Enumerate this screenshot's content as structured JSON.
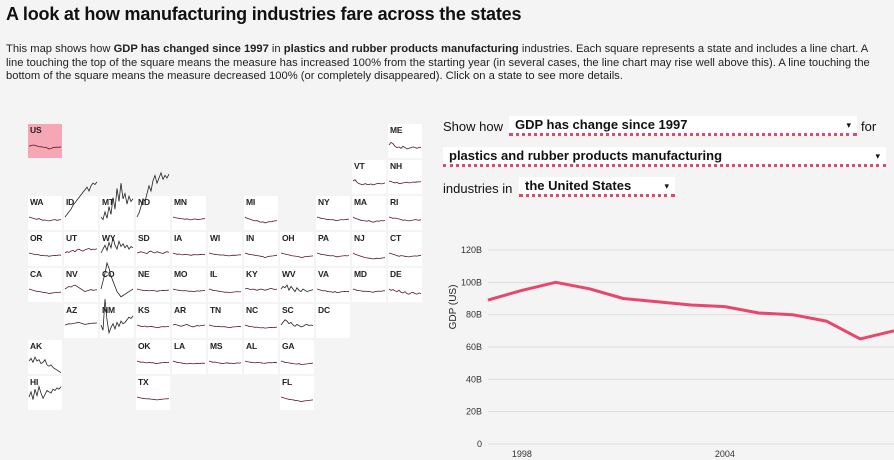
{
  "header": {
    "title": "A look at how manufacturing industries fare across the states",
    "desc_p1": "This map shows how ",
    "desc_b1": "GDP has changed since 1997",
    "desc_p2": " in ",
    "desc_b2": "plastics and rubber products manufacturing",
    "desc_p3": " industries. Each square represents a state and includes a line chart. A line touching the top of the square means the measure has increased 100% from the starting year (in several cases, the line chart may rise well above this). A line touching the bottom of the square means the measure decreased 100% (or completely disappeared). Click on a state to see more details."
  },
  "controls": {
    "show_how": "Show how",
    "measure": "GDP has change since 1997",
    "for_label": "for",
    "industry": "plastics and rubber products manufacturing",
    "industries_in": "industries in",
    "region": "the United States",
    "caret": "▾"
  },
  "colors": {
    "accent": "#e04a6a",
    "line": "#e8476b",
    "tile_active": "#f6a7b5",
    "spark": "#5a1722"
  },
  "states": [
    {
      "abbr": "US",
      "col": 0,
      "row": 0,
      "active": true,
      "values": [
        -10,
        -5,
        0,
        -3,
        -8,
        -12,
        -14,
        -16,
        -18,
        -22,
        -30,
        -28,
        -20,
        -18,
        -16,
        -18,
        -14
      ]
    },
    {
      "abbr": "ME",
      "col": 10,
      "row": 0,
      "values": [
        0,
        20,
        10,
        -10,
        -20,
        -15,
        -25,
        -10,
        -20,
        -30,
        -25,
        -20,
        -15,
        -20,
        -25,
        -18,
        -20
      ]
    },
    {
      "abbr": "VT",
      "col": 9,
      "row": 1,
      "values": [
        0,
        10,
        -10,
        -20,
        -25,
        -30,
        -20,
        -25,
        -28,
        -22,
        -30,
        -25,
        -20,
        -18,
        -22,
        -20,
        -15
      ]
    },
    {
      "abbr": "NH",
      "col": 10,
      "row": 1,
      "values": [
        0,
        -5,
        -10,
        -15,
        -10,
        -20,
        -18,
        -15,
        -12,
        -10,
        -15,
        -12,
        -8,
        -10,
        -6,
        -8,
        -5
      ]
    },
    {
      "abbr": "WA",
      "col": 0,
      "row": 2,
      "values": [
        0,
        -5,
        -10,
        -15,
        -18,
        -12,
        -20,
        -25,
        -22,
        -28,
        -30,
        -26,
        -22,
        -20,
        -25,
        -22,
        -20
      ]
    },
    {
      "abbr": "ID",
      "col": 1,
      "row": 2,
      "wild": true,
      "values": [
        0,
        20,
        40,
        60,
        90,
        110,
        130,
        150,
        170,
        190,
        210,
        230,
        200,
        240,
        260,
        250,
        270
      ]
    },
    {
      "abbr": "MT",
      "col": 2,
      "row": 2,
      "wild": true,
      "values": [
        0,
        -20,
        40,
        -10,
        80,
        20,
        150,
        60,
        220,
        120,
        260,
        140,
        180,
        100,
        160,
        120,
        140
      ]
    },
    {
      "abbr": "ND",
      "col": 3,
      "row": 2,
      "wild": true,
      "values": [
        0,
        30,
        80,
        140,
        120,
        180,
        240,
        200,
        280,
        320,
        260,
        300,
        340,
        290,
        320,
        300,
        330
      ]
    },
    {
      "abbr": "MN",
      "col": 4,
      "row": 2,
      "values": [
        0,
        -5,
        -8,
        -10,
        -12,
        -15,
        -18,
        -14,
        -20,
        -22,
        -18,
        -15,
        -20,
        -18,
        -16,
        -14,
        -12
      ]
    },
    {
      "abbr": "MI",
      "col": 6,
      "row": 2,
      "values": [
        0,
        -10,
        -15,
        -20,
        -25,
        -30,
        -28,
        -35,
        -40,
        -38,
        -45,
        -40,
        -35,
        -38,
        -32,
        -30,
        -28
      ]
    },
    {
      "abbr": "NY",
      "col": 8,
      "row": 2,
      "values": [
        0,
        -5,
        -10,
        -12,
        -15,
        -20,
        -18,
        -22,
        -20,
        -25,
        -28,
        -24,
        -20,
        -22,
        -20,
        -18,
        -16
      ]
    },
    {
      "abbr": "MA",
      "col": 9,
      "row": 2,
      "values": [
        0,
        -10,
        -15,
        -20,
        -25,
        -28,
        -30,
        -32,
        -28,
        -35,
        -40,
        -36,
        -30,
        -32,
        -28,
        -30,
        -26
      ]
    },
    {
      "abbr": "RI",
      "col": 10,
      "row": 2,
      "values": [
        0,
        -5,
        -10,
        -8,
        -12,
        -15,
        -20,
        -25,
        -22,
        -28,
        -30,
        -26,
        -24,
        -20,
        -22,
        -25,
        -20
      ]
    },
    {
      "abbr": "OR",
      "col": 0,
      "row": 3,
      "values": [
        0,
        -5,
        -8,
        -12,
        -10,
        -15,
        -20,
        -18,
        -22,
        -20,
        -25,
        -22,
        -20,
        -18,
        -20,
        -15,
        -18
      ]
    },
    {
      "abbr": "UT",
      "col": 1,
      "row": 3,
      "values": [
        0,
        10,
        5,
        15,
        20,
        10,
        25,
        30,
        20,
        15,
        25,
        30,
        35,
        25,
        30,
        28,
        32
      ]
    },
    {
      "abbr": "WY",
      "col": 2,
      "row": 3,
      "wild": true,
      "values": [
        0,
        30,
        60,
        20,
        80,
        40,
        120,
        60,
        30,
        90,
        50,
        70,
        40,
        60,
        30,
        50,
        40
      ]
    },
    {
      "abbr": "SD",
      "col": 3,
      "row": 3,
      "values": [
        0,
        5,
        10,
        5,
        0,
        -5,
        10,
        15,
        5,
        0,
        10,
        5,
        0,
        -5,
        5,
        10,
        5
      ]
    },
    {
      "abbr": "IA",
      "col": 4,
      "row": 3,
      "values": [
        0,
        -5,
        -10,
        -8,
        -12,
        -15,
        -10,
        -12,
        -15,
        -18,
        -14,
        -12,
        -15,
        -13,
        -10,
        -12,
        -10
      ]
    },
    {
      "abbr": "WI",
      "col": 5,
      "row": 3,
      "values": [
        0,
        -5,
        -8,
        -10,
        -12,
        -14,
        -16,
        -15,
        -18,
        -20,
        -22,
        -19,
        -17,
        -18,
        -16,
        -15,
        -14
      ]
    },
    {
      "abbr": "IN",
      "col": 6,
      "row": 3,
      "values": [
        0,
        -5,
        -10,
        -12,
        -15,
        -18,
        -20,
        -22,
        -25,
        -28,
        -35,
        -30,
        -25,
        -24,
        -22,
        -20,
        -18
      ]
    },
    {
      "abbr": "OH",
      "col": 7,
      "row": 3,
      "values": [
        0,
        -5,
        -8,
        -12,
        -15,
        -20,
        -22,
        -24,
        -26,
        -28,
        -35,
        -32,
        -28,
        -26,
        -25,
        -24,
        -22
      ]
    },
    {
      "abbr": "PA",
      "col": 8,
      "row": 3,
      "values": [
        0,
        -5,
        -10,
        -12,
        -15,
        -18,
        -20,
        -22,
        -20,
        -25,
        -30,
        -26,
        -24,
        -22,
        -20,
        -22,
        -20
      ]
    },
    {
      "abbr": "NJ",
      "col": 9,
      "row": 3,
      "values": [
        0,
        -10,
        -15,
        -20,
        -25,
        -30,
        -35,
        -38,
        -40,
        -42,
        -45,
        -44,
        -40,
        -42,
        -40,
        -38,
        -36
      ]
    },
    {
      "abbr": "CT",
      "col": 10,
      "row": 3,
      "values": [
        0,
        -5,
        -10,
        -15,
        -20,
        -25,
        -20,
        -22,
        -25,
        -28,
        -30,
        -26,
        -24,
        -22,
        -24,
        -20,
        -18
      ]
    },
    {
      "abbr": "CA",
      "col": 0,
      "row": 4,
      "values": [
        0,
        -5,
        -10,
        -15,
        -18,
        -20,
        -22,
        -25,
        -28,
        -30,
        -35,
        -32,
        -30,
        -28,
        -26,
        -25,
        -24
      ]
    },
    {
      "abbr": "NV",
      "col": 1,
      "row": 4,
      "values": [
        0,
        10,
        20,
        15,
        25,
        30,
        20,
        10,
        0,
        -10,
        -20,
        -15,
        -10,
        -5,
        -10,
        -8,
        -5
      ]
    },
    {
      "abbr": "CO",
      "col": 2,
      "row": 4,
      "wild": true,
      "values": [
        0,
        60,
        120,
        200,
        160,
        100,
        60,
        20,
        -20,
        -40,
        -60,
        -50,
        -40,
        -30,
        -20,
        -10,
        0
      ]
    },
    {
      "abbr": "NE",
      "col": 3,
      "row": 4,
      "values": [
        0,
        -5,
        -8,
        -10,
        -12,
        -10,
        -15,
        -12,
        -10,
        -15,
        -18,
        -14,
        -12,
        -10,
        -12,
        -10,
        -8
      ]
    },
    {
      "abbr": "MO",
      "col": 4,
      "row": 4,
      "values": [
        0,
        -5,
        -8,
        -10,
        -12,
        -14,
        -12,
        -15,
        -18,
        -16,
        -20,
        -18,
        -15,
        -16,
        -14,
        -12,
        -10
      ]
    },
    {
      "abbr": "IL",
      "col": 5,
      "row": 4,
      "values": [
        0,
        -5,
        -10,
        -12,
        -15,
        -18,
        -20,
        -22,
        -25,
        -24,
        -28,
        -26,
        -24,
        -22,
        -20,
        -22,
        -20
      ]
    },
    {
      "abbr": "KY",
      "col": 6,
      "row": 4,
      "values": [
        0,
        5,
        0,
        -5,
        0,
        -5,
        -10,
        -5,
        0,
        -5,
        -10,
        -5,
        0,
        5,
        0,
        -5,
        0
      ]
    },
    {
      "abbr": "WV",
      "col": 7,
      "row": 4,
      "wild": true,
      "values": [
        0,
        20,
        10,
        30,
        -10,
        20,
        0,
        -20,
        10,
        -10,
        -20,
        0,
        -10,
        -20,
        -15,
        -10,
        -5
      ]
    },
    {
      "abbr": "VA",
      "col": 8,
      "row": 4,
      "values": [
        0,
        -5,
        -10,
        -15,
        -12,
        -18,
        -20,
        -22,
        -25,
        -20,
        -28,
        -25,
        -22,
        -20,
        -18,
        -20,
        -18
      ]
    },
    {
      "abbr": "MD",
      "col": 9,
      "row": 4,
      "values": [
        0,
        -5,
        -10,
        -12,
        -15,
        -18,
        -16,
        -20,
        -18,
        -22,
        -25,
        -20,
        -18,
        -16,
        -18,
        -15,
        -14
      ]
    },
    {
      "abbr": "DE",
      "col": 10,
      "row": 4,
      "values": [
        0,
        -10,
        -5,
        -15,
        -20,
        -10,
        -25,
        -30,
        -20,
        -35,
        -40,
        -30,
        -25,
        -35,
        -40,
        -30,
        -35
      ]
    },
    {
      "abbr": "AZ",
      "col": 1,
      "row": 5,
      "values": [
        0,
        5,
        10,
        8,
        12,
        15,
        18,
        20,
        15,
        10,
        5,
        8,
        10,
        12,
        15,
        14,
        16
      ]
    },
    {
      "abbr": "NM",
      "col": 2,
      "row": 5,
      "wild": true,
      "values": [
        0,
        -40,
        200,
        40,
        -60,
        -20,
        10,
        -30,
        20,
        -10,
        30,
        10,
        20,
        40,
        60,
        50,
        70
      ]
    },
    {
      "abbr": "KS",
      "col": 3,
      "row": 5,
      "values": [
        0,
        -5,
        -10,
        -12,
        -8,
        -15,
        -12,
        -10,
        -14,
        -16,
        -20,
        -18,
        -15,
        -12,
        -14,
        -12,
        -10
      ]
    },
    {
      "abbr": "AR",
      "col": 4,
      "row": 5,
      "values": [
        0,
        5,
        0,
        -5,
        -10,
        -5,
        0,
        5,
        -5,
        -10,
        -15,
        -10,
        -5,
        -8,
        -5,
        -3,
        0
      ]
    },
    {
      "abbr": "TN",
      "col": 5,
      "row": 5,
      "values": [
        0,
        -5,
        -8,
        -10,
        -12,
        -10,
        -15,
        -12,
        -14,
        -16,
        -20,
        -18,
        -15,
        -14,
        -12,
        -10,
        -12
      ]
    },
    {
      "abbr": "NC",
      "col": 6,
      "row": 5,
      "values": [
        0,
        -5,
        -10,
        -12,
        -15,
        -18,
        -16,
        -20,
        -22,
        -20,
        -24,
        -22,
        -20,
        -18,
        -20,
        -18,
        -16
      ]
    },
    {
      "abbr": "SC",
      "col": 7,
      "row": 5,
      "wild": true,
      "values": [
        0,
        20,
        40,
        30,
        10,
        20,
        0,
        -10,
        5,
        -5,
        -15,
        -10,
        0,
        5,
        -5,
        0,
        -5
      ]
    },
    {
      "abbr": "DC",
      "col": 8,
      "row": 5,
      "values": []
    },
    {
      "abbr": "AK",
      "col": 0,
      "row": 6,
      "wild": true,
      "values": [
        0,
        20,
        -10,
        30,
        0,
        10,
        -20,
        -10,
        10,
        -30,
        -40,
        -30,
        -50,
        -60,
        -70,
        -80,
        -90
      ]
    },
    {
      "abbr": "OK",
      "col": 3,
      "row": 6,
      "values": [
        0,
        -5,
        -10,
        -8,
        -12,
        -15,
        -10,
        -14,
        -12,
        -18,
        -20,
        -16,
        -14,
        -12,
        -10,
        -12,
        -10
      ]
    },
    {
      "abbr": "LA",
      "col": 4,
      "row": 6,
      "values": [
        0,
        -5,
        -10,
        -12,
        -15,
        -18,
        -20,
        -22,
        -20,
        -18,
        -22,
        -20,
        -18,
        -20,
        -18,
        -16,
        -18
      ]
    },
    {
      "abbr": "MS",
      "col": 5,
      "row": 6,
      "values": [
        0,
        -5,
        -10,
        -8,
        -12,
        -15,
        -18,
        -20,
        -16,
        -14,
        -18,
        -16,
        -20,
        -18,
        -15,
        -16,
        -14
      ]
    },
    {
      "abbr": "AL",
      "col": 6,
      "row": 6,
      "values": [
        0,
        -5,
        -8,
        -10,
        -12,
        -15,
        -10,
        -12,
        -14,
        -16,
        -18,
        -15,
        -12,
        -14,
        -12,
        -10,
        -12
      ]
    },
    {
      "abbr": "GA",
      "col": 7,
      "row": 6,
      "values": [
        0,
        -5,
        -10,
        -12,
        -15,
        -18,
        -20,
        -22,
        -24,
        -20,
        -28,
        -26,
        -24,
        -22,
        -20,
        -18,
        -16
      ]
    },
    {
      "abbr": "HI",
      "col": 0,
      "row": 7,
      "wild": true,
      "values": [
        0,
        40,
        -20,
        60,
        10,
        80,
        30,
        -10,
        20,
        50,
        40,
        30,
        60,
        50,
        70,
        60,
        80
      ]
    },
    {
      "abbr": "TX",
      "col": 3,
      "row": 7,
      "values": [
        0,
        -5,
        -8,
        -10,
        -12,
        -15,
        -14,
        -16,
        -18,
        -20,
        -22,
        -20,
        -18,
        -16,
        -15,
        -14,
        -12
      ]
    },
    {
      "abbr": "FL",
      "col": 7,
      "row": 7,
      "values": [
        0,
        -5,
        -10,
        -15,
        -18,
        -20,
        -22,
        -25,
        -28,
        -30,
        -35,
        -32,
        -30,
        -28,
        -26,
        -24,
        -22
      ]
    }
  ],
  "chart_data": {
    "type": "line",
    "title": "",
    "xlabel": "",
    "ylabel": "GDP (US)",
    "x": [
      1997,
      1998,
      1999,
      2000,
      2001,
      2002,
      2003,
      2004,
      2005,
      2006,
      2007,
      2008,
      2009
    ],
    "series": [
      {
        "name": "United States",
        "values": [
          89,
          95,
          100,
          96,
          90,
          88,
          86,
          85,
          81,
          80,
          76,
          65,
          70
        ]
      }
    ],
    "yticks": [
      0,
      20,
      40,
      60,
      80,
      100,
      120
    ],
    "ytick_labels": [
      "0",
      "20B",
      "40B",
      "60B",
      "80B",
      "100B",
      "120B"
    ],
    "xticks": [
      1998,
      2004
    ],
    "xtick_labels": [
      "1998",
      "2004"
    ],
    "ylim": [
      0,
      120
    ],
    "xlim": [
      1997,
      2009
    ]
  }
}
